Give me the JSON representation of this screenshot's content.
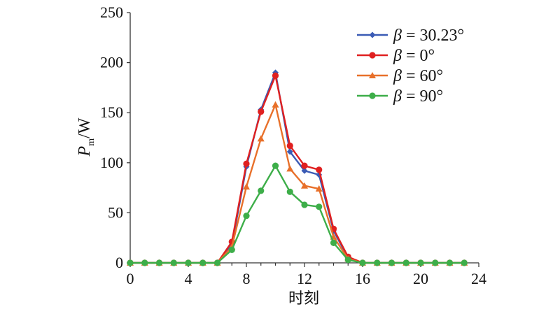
{
  "chart_data": {
    "type": "line",
    "xlabel": "时刻",
    "ylabel_main": "P",
    "ylabel_sub": "m",
    "ylabel_unit": "/W",
    "xlim": [
      0,
      24
    ],
    "ylim": [
      0,
      250
    ],
    "xticks": [
      0,
      4,
      8,
      12,
      16,
      20,
      24
    ],
    "yticks": [
      0,
      50,
      100,
      150,
      200,
      250
    ],
    "grid": false,
    "legend_position": "top-right",
    "x": [
      0,
      1,
      2,
      3,
      4,
      5,
      6,
      7,
      8,
      9,
      10,
      11,
      12,
      13,
      14,
      15,
      16,
      17,
      18,
      19,
      20,
      21,
      22,
      23
    ],
    "series": [
      {
        "name_symbol": "β",
        "name_value": " = 30.23°",
        "color": "#3b5bb5",
        "marker": "diamond",
        "values": [
          0,
          0,
          0,
          0,
          0,
          0,
          0,
          18,
          96,
          153,
          190,
          111,
          92,
          88,
          32,
          5,
          0,
          0,
          0,
          0,
          0,
          0,
          0,
          0
        ]
      },
      {
        "name_symbol": "β",
        "name_value": " = 0°",
        "color": "#e02020",
        "marker": "circle",
        "values": [
          0,
          0,
          0,
          0,
          0,
          0,
          0,
          21,
          99,
          151,
          187,
          117,
          97,
          93,
          34,
          6,
          0,
          0,
          0,
          0,
          0,
          0,
          0,
          0
        ]
      },
      {
        "name_symbol": "β",
        "name_value": " = 60°",
        "color": "#e8702a",
        "marker": "triangle",
        "values": [
          0,
          0,
          0,
          0,
          0,
          0,
          0,
          16,
          76,
          124,
          158,
          94,
          77,
          74,
          26,
          4,
          0,
          0,
          0,
          0,
          0,
          0,
          0,
          0
        ]
      },
      {
        "name_symbol": "β",
        "name_value": " = 90°",
        "color": "#3dae49",
        "marker": "circle",
        "values": [
          0,
          0,
          0,
          0,
          0,
          0,
          0,
          13,
          47,
          72,
          97,
          71,
          58,
          56,
          20,
          3,
          0,
          0,
          0,
          0,
          0,
          0,
          0,
          0
        ]
      }
    ]
  }
}
